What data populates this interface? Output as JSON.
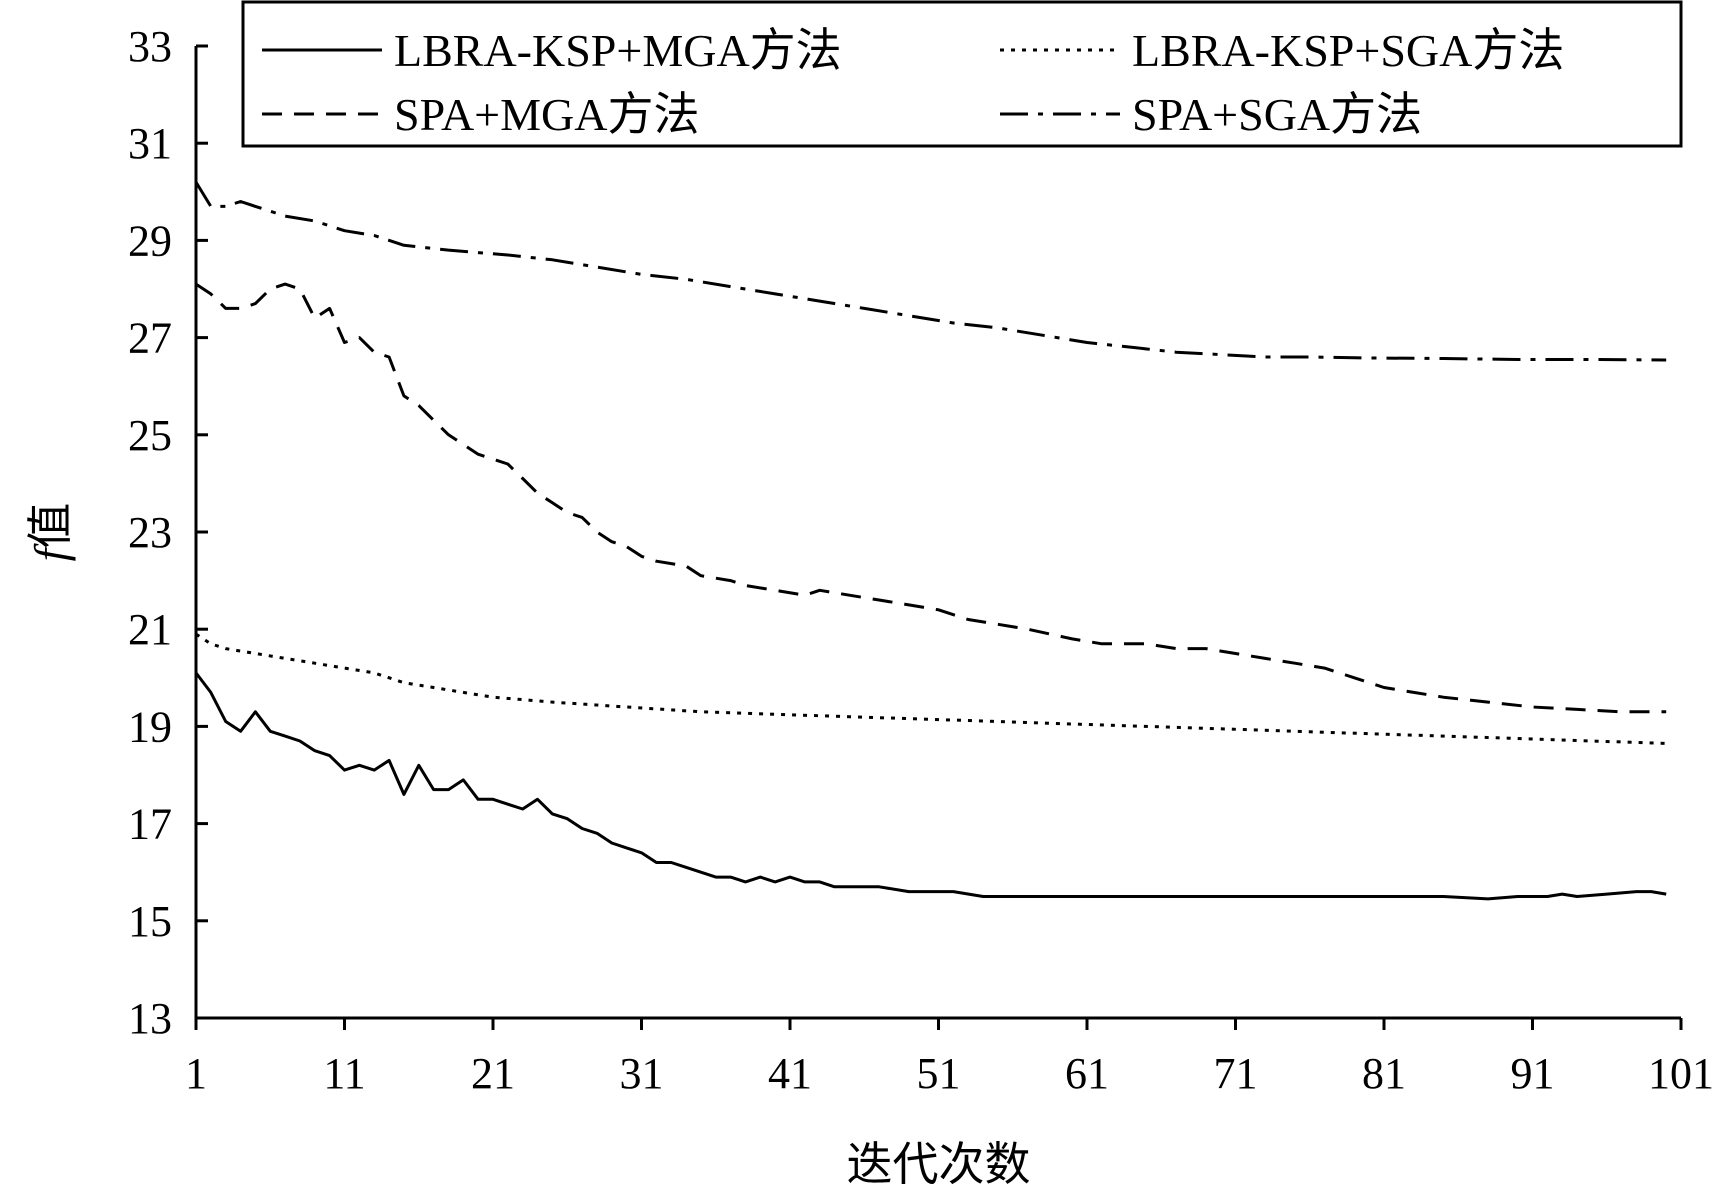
{
  "chart_data": {
    "type": "line",
    "title": "",
    "xlabel": "迭代次数",
    "ylabel_italic": "f",
    "ylabel_rest": "值",
    "xlim": [
      1,
      101
    ],
    "ylim": [
      13,
      33
    ],
    "x_ticks": [
      "1",
      "11",
      "21",
      "31",
      "41",
      "51",
      "61",
      "71",
      "81",
      "91",
      "101"
    ],
    "y_ticks": [
      "13",
      "15",
      "17",
      "19",
      "21",
      "23",
      "25",
      "27",
      "29",
      "31",
      "33"
    ],
    "grid": false,
    "legend_position": "top",
    "series": [
      {
        "name": "LBRA-KSP+MGA方法",
        "style": "solid",
        "points": [
          [
            1,
            20.1
          ],
          [
            2,
            19.7
          ],
          [
            3,
            19.1
          ],
          [
            4,
            18.9
          ],
          [
            5,
            19.3
          ],
          [
            6,
            18.9
          ],
          [
            7,
            18.8
          ],
          [
            8,
            18.7
          ],
          [
            9,
            18.5
          ],
          [
            10,
            18.4
          ],
          [
            11,
            18.1
          ],
          [
            12,
            18.2
          ],
          [
            13,
            18.1
          ],
          [
            14,
            18.3
          ],
          [
            15,
            17.6
          ],
          [
            16,
            18.2
          ],
          [
            17,
            17.7
          ],
          [
            18,
            17.7
          ],
          [
            19,
            17.9
          ],
          [
            20,
            17.5
          ],
          [
            21,
            17.5
          ],
          [
            22,
            17.4
          ],
          [
            23,
            17.3
          ],
          [
            24,
            17.5
          ],
          [
            25,
            17.2
          ],
          [
            26,
            17.1
          ],
          [
            27,
            16.9
          ],
          [
            28,
            16.8
          ],
          [
            29,
            16.6
          ],
          [
            30,
            16.5
          ],
          [
            31,
            16.4
          ],
          [
            32,
            16.2
          ],
          [
            33,
            16.2
          ],
          [
            34,
            16.1
          ],
          [
            35,
            16.0
          ],
          [
            36,
            15.9
          ],
          [
            37,
            15.9
          ],
          [
            38,
            15.8
          ],
          [
            39,
            15.9
          ],
          [
            40,
            15.8
          ],
          [
            41,
            15.9
          ],
          [
            42,
            15.8
          ],
          [
            43,
            15.8
          ],
          [
            44,
            15.7
          ],
          [
            45,
            15.7
          ],
          [
            47,
            15.7
          ],
          [
            49,
            15.6
          ],
          [
            52,
            15.6
          ],
          [
            54,
            15.5
          ],
          [
            60,
            15.5
          ],
          [
            65,
            15.5
          ],
          [
            70,
            15.5
          ],
          [
            75,
            15.5
          ],
          [
            80,
            15.5
          ],
          [
            85,
            15.5
          ],
          [
            88,
            15.45
          ],
          [
            90,
            15.5
          ],
          [
            92,
            15.5
          ],
          [
            93,
            15.55
          ],
          [
            94,
            15.5
          ],
          [
            96,
            15.55
          ],
          [
            98,
            15.6
          ],
          [
            99,
            15.6
          ],
          [
            100,
            15.55
          ]
        ]
      },
      {
        "name": "LBRA-KSP+SGA方法",
        "style": "dotted",
        "points": [
          [
            1,
            20.9
          ],
          [
            2,
            20.7
          ],
          [
            3,
            20.6
          ],
          [
            5,
            20.5
          ],
          [
            7,
            20.4
          ],
          [
            9,
            20.3
          ],
          [
            11,
            20.2
          ],
          [
            13,
            20.1
          ],
          [
            15,
            19.9
          ],
          [
            17,
            19.8
          ],
          [
            19,
            19.7
          ],
          [
            21,
            19.6
          ],
          [
            25,
            19.5
          ],
          [
            30,
            19.4
          ],
          [
            35,
            19.3
          ],
          [
            40,
            19.25
          ],
          [
            45,
            19.2
          ],
          [
            50,
            19.15
          ],
          [
            55,
            19.1
          ],
          [
            60,
            19.05
          ],
          [
            65,
            19.0
          ],
          [
            70,
            18.95
          ],
          [
            75,
            18.9
          ],
          [
            80,
            18.85
          ],
          [
            85,
            18.8
          ],
          [
            90,
            18.75
          ],
          [
            95,
            18.7
          ],
          [
            100,
            18.65
          ]
        ]
      },
      {
        "name": "SPA+MGA方法",
        "style": "dashed",
        "points": [
          [
            1,
            28.1
          ],
          [
            2,
            27.9
          ],
          [
            3,
            27.6
          ],
          [
            4,
            27.6
          ],
          [
            5,
            27.7
          ],
          [
            6,
            28.0
          ],
          [
            7,
            28.1
          ],
          [
            8,
            28.0
          ],
          [
            9,
            27.4
          ],
          [
            10,
            27.6
          ],
          [
            11,
            26.9
          ],
          [
            12,
            27.0
          ],
          [
            13,
            26.7
          ],
          [
            14,
            26.6
          ],
          [
            15,
            25.8
          ],
          [
            16,
            25.6
          ],
          [
            17,
            25.3
          ],
          [
            18,
            25.0
          ],
          [
            19,
            24.8
          ],
          [
            20,
            24.6
          ],
          [
            21,
            24.5
          ],
          [
            22,
            24.4
          ],
          [
            23,
            24.1
          ],
          [
            24,
            23.8
          ],
          [
            25,
            23.6
          ],
          [
            26,
            23.4
          ],
          [
            27,
            23.3
          ],
          [
            28,
            23.0
          ],
          [
            29,
            22.8
          ],
          [
            30,
            22.7
          ],
          [
            31,
            22.5
          ],
          [
            32,
            22.4
          ],
          [
            34,
            22.3
          ],
          [
            35,
            22.1
          ],
          [
            37,
            22.0
          ],
          [
            38,
            21.9
          ],
          [
            40,
            21.8
          ],
          [
            42,
            21.7
          ],
          [
            43,
            21.8
          ],
          [
            45,
            21.7
          ],
          [
            47,
            21.6
          ],
          [
            49,
            21.5
          ],
          [
            51,
            21.4
          ],
          [
            53,
            21.2
          ],
          [
            55,
            21.1
          ],
          [
            57,
            21.0
          ],
          [
            60,
            20.8
          ],
          [
            62,
            20.7
          ],
          [
            65,
            20.7
          ],
          [
            67,
            20.6
          ],
          [
            69,
            20.6
          ],
          [
            71,
            20.5
          ],
          [
            73,
            20.4
          ],
          [
            75,
            20.3
          ],
          [
            77,
            20.2
          ],
          [
            79,
            20.0
          ],
          [
            81,
            19.8
          ],
          [
            83,
            19.7
          ],
          [
            85,
            19.6
          ],
          [
            88,
            19.5
          ],
          [
            91,
            19.4
          ],
          [
            94,
            19.35
          ],
          [
            97,
            19.3
          ],
          [
            100,
            19.3
          ]
        ]
      },
      {
        "name": "SPA+SGA方法",
        "style": "dashdot",
        "points": [
          [
            1,
            30.2
          ],
          [
            2,
            29.7
          ],
          [
            3,
            29.7
          ],
          [
            4,
            29.8
          ],
          [
            5,
            29.7
          ],
          [
            6,
            29.6
          ],
          [
            7,
            29.5
          ],
          [
            9,
            29.4
          ],
          [
            11,
            29.2
          ],
          [
            13,
            29.1
          ],
          [
            15,
            28.9
          ],
          [
            18,
            28.8
          ],
          [
            20,
            28.75
          ],
          [
            22,
            28.7
          ],
          [
            25,
            28.6
          ],
          [
            28,
            28.45
          ],
          [
            31,
            28.3
          ],
          [
            34,
            28.2
          ],
          [
            37,
            28.05
          ],
          [
            40,
            27.9
          ],
          [
            43,
            27.75
          ],
          [
            46,
            27.6
          ],
          [
            49,
            27.45
          ],
          [
            52,
            27.3
          ],
          [
            55,
            27.2
          ],
          [
            58,
            27.05
          ],
          [
            61,
            26.9
          ],
          [
            64,
            26.8
          ],
          [
            67,
            26.7
          ],
          [
            70,
            26.65
          ],
          [
            73,
            26.6
          ],
          [
            76,
            26.6
          ],
          [
            80,
            26.58
          ],
          [
            85,
            26.57
          ],
          [
            90,
            26.55
          ],
          [
            95,
            26.55
          ],
          [
            100,
            26.54
          ]
        ]
      }
    ]
  }
}
